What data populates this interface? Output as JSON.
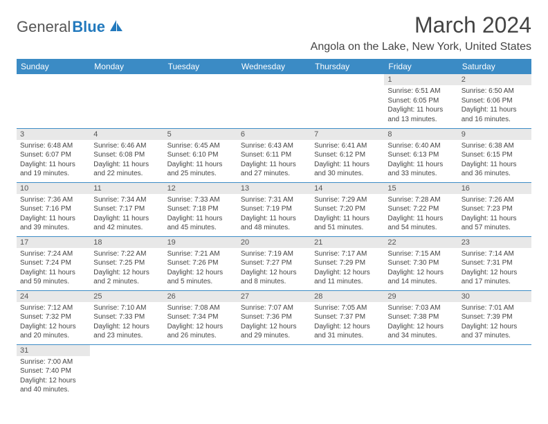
{
  "brand": {
    "text_a": "General",
    "text_b": "Blue"
  },
  "title": "March 2024",
  "location": "Angola on the Lake, New York, United States",
  "colors": {
    "header_bg": "#3b8bc5",
    "header_text": "#ffffff",
    "daynum_bg": "#e8e8e8",
    "row_divider": "#3b8bc5",
    "brand_gray": "#555555",
    "brand_blue": "#2279bd",
    "body_text": "#444444",
    "background": "#ffffff"
  },
  "typography": {
    "title_fontsize": 32,
    "location_fontsize": 16,
    "header_fontsize": 12,
    "daynum_fontsize": 11,
    "body_fontsize": 10
  },
  "columns": [
    "Sunday",
    "Monday",
    "Tuesday",
    "Wednesday",
    "Thursday",
    "Friday",
    "Saturday"
  ],
  "weeks": [
    [
      null,
      null,
      null,
      null,
      null,
      {
        "n": "1",
        "sunrise": "6:51 AM",
        "sunset": "6:05 PM",
        "daylight": "11 hours and 13 minutes."
      },
      {
        "n": "2",
        "sunrise": "6:50 AM",
        "sunset": "6:06 PM",
        "daylight": "11 hours and 16 minutes."
      }
    ],
    [
      {
        "n": "3",
        "sunrise": "6:48 AM",
        "sunset": "6:07 PM",
        "daylight": "11 hours and 19 minutes."
      },
      {
        "n": "4",
        "sunrise": "6:46 AM",
        "sunset": "6:08 PM",
        "daylight": "11 hours and 22 minutes."
      },
      {
        "n": "5",
        "sunrise": "6:45 AM",
        "sunset": "6:10 PM",
        "daylight": "11 hours and 25 minutes."
      },
      {
        "n": "6",
        "sunrise": "6:43 AM",
        "sunset": "6:11 PM",
        "daylight": "11 hours and 27 minutes."
      },
      {
        "n": "7",
        "sunrise": "6:41 AM",
        "sunset": "6:12 PM",
        "daylight": "11 hours and 30 minutes."
      },
      {
        "n": "8",
        "sunrise": "6:40 AM",
        "sunset": "6:13 PM",
        "daylight": "11 hours and 33 minutes."
      },
      {
        "n": "9",
        "sunrise": "6:38 AM",
        "sunset": "6:15 PM",
        "daylight": "11 hours and 36 minutes."
      }
    ],
    [
      {
        "n": "10",
        "sunrise": "7:36 AM",
        "sunset": "7:16 PM",
        "daylight": "11 hours and 39 minutes."
      },
      {
        "n": "11",
        "sunrise": "7:34 AM",
        "sunset": "7:17 PM",
        "daylight": "11 hours and 42 minutes."
      },
      {
        "n": "12",
        "sunrise": "7:33 AM",
        "sunset": "7:18 PM",
        "daylight": "11 hours and 45 minutes."
      },
      {
        "n": "13",
        "sunrise": "7:31 AM",
        "sunset": "7:19 PM",
        "daylight": "11 hours and 48 minutes."
      },
      {
        "n": "14",
        "sunrise": "7:29 AM",
        "sunset": "7:20 PM",
        "daylight": "11 hours and 51 minutes."
      },
      {
        "n": "15",
        "sunrise": "7:28 AM",
        "sunset": "7:22 PM",
        "daylight": "11 hours and 54 minutes."
      },
      {
        "n": "16",
        "sunrise": "7:26 AM",
        "sunset": "7:23 PM",
        "daylight": "11 hours and 57 minutes."
      }
    ],
    [
      {
        "n": "17",
        "sunrise": "7:24 AM",
        "sunset": "7:24 PM",
        "daylight": "11 hours and 59 minutes."
      },
      {
        "n": "18",
        "sunrise": "7:22 AM",
        "sunset": "7:25 PM",
        "daylight": "12 hours and 2 minutes."
      },
      {
        "n": "19",
        "sunrise": "7:21 AM",
        "sunset": "7:26 PM",
        "daylight": "12 hours and 5 minutes."
      },
      {
        "n": "20",
        "sunrise": "7:19 AM",
        "sunset": "7:27 PM",
        "daylight": "12 hours and 8 minutes."
      },
      {
        "n": "21",
        "sunrise": "7:17 AM",
        "sunset": "7:29 PM",
        "daylight": "12 hours and 11 minutes."
      },
      {
        "n": "22",
        "sunrise": "7:15 AM",
        "sunset": "7:30 PM",
        "daylight": "12 hours and 14 minutes."
      },
      {
        "n": "23",
        "sunrise": "7:14 AM",
        "sunset": "7:31 PM",
        "daylight": "12 hours and 17 minutes."
      }
    ],
    [
      {
        "n": "24",
        "sunrise": "7:12 AM",
        "sunset": "7:32 PM",
        "daylight": "12 hours and 20 minutes."
      },
      {
        "n": "25",
        "sunrise": "7:10 AM",
        "sunset": "7:33 PM",
        "daylight": "12 hours and 23 minutes."
      },
      {
        "n": "26",
        "sunrise": "7:08 AM",
        "sunset": "7:34 PM",
        "daylight": "12 hours and 26 minutes."
      },
      {
        "n": "27",
        "sunrise": "7:07 AM",
        "sunset": "7:36 PM",
        "daylight": "12 hours and 29 minutes."
      },
      {
        "n": "28",
        "sunrise": "7:05 AM",
        "sunset": "7:37 PM",
        "daylight": "12 hours and 31 minutes."
      },
      {
        "n": "29",
        "sunrise": "7:03 AM",
        "sunset": "7:38 PM",
        "daylight": "12 hours and 34 minutes."
      },
      {
        "n": "30",
        "sunrise": "7:01 AM",
        "sunset": "7:39 PM",
        "daylight": "12 hours and 37 minutes."
      }
    ],
    [
      {
        "n": "31",
        "sunrise": "7:00 AM",
        "sunset": "7:40 PM",
        "daylight": "12 hours and 40 minutes."
      },
      null,
      null,
      null,
      null,
      null,
      null
    ]
  ],
  "labels": {
    "sunrise": "Sunrise:",
    "sunset": "Sunset:",
    "daylight": "Daylight:"
  }
}
